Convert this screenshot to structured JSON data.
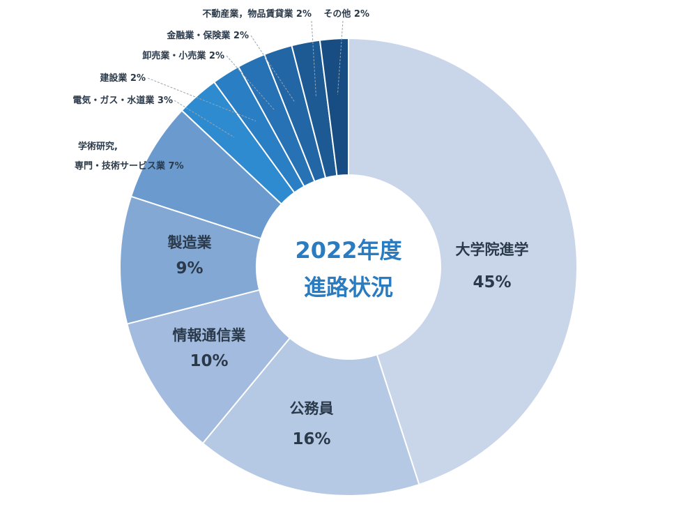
{
  "chart_data": {
    "type": "pie",
    "title_lines": [
      "2022年度",
      "進路状況"
    ],
    "slices": [
      {
        "name": "大学院進学",
        "value": 45,
        "label": "45%",
        "color": "#c9d6ea"
      },
      {
        "name": "公務員",
        "value": 16,
        "label": "16%",
        "color": "#b5c9e4"
      },
      {
        "name": "情報通信業",
        "value": 10,
        "label": "10%",
        "color": "#a2bbde"
      },
      {
        "name": "製造業",
        "value": 9,
        "label": "9%",
        "color": "#84a8d4"
      },
      {
        "name": "学術研究,\n専門・技術サービス業",
        "value": 7,
        "label": "7%",
        "color": "#6b9acf"
      },
      {
        "name": "電気・ガス・水道業",
        "value": 3,
        "label": "3%",
        "color": "#2e8bd0"
      },
      {
        "name": "建設業",
        "value": 2,
        "label": "2%",
        "color": "#2a7ec4"
      },
      {
        "name": "卸売業・小売業",
        "value": 2,
        "label": "2%",
        "color": "#2672b5"
      },
      {
        "name": "金融業・保険業",
        "value": 2,
        "label": "2%",
        "color": "#2266a5"
      },
      {
        "name": "不動産業，物品賃貸業",
        "value": 2,
        "label": "2%",
        "color": "#1d5a94"
      },
      {
        "name": "その他",
        "value": 2,
        "label": "2%",
        "color": "#174d83"
      }
    ]
  }
}
